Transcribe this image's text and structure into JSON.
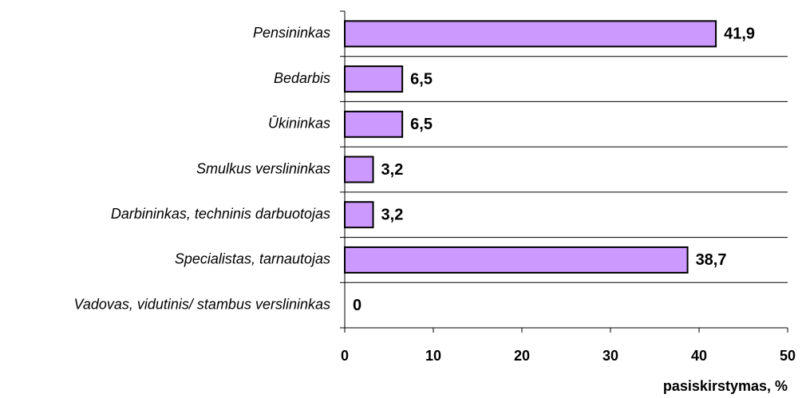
{
  "chart_data": {
    "type": "bar",
    "orientation": "horizontal",
    "categories": [
      "Pensininkas",
      "Bedarbis",
      "Ūkininkas",
      "Smulkus verslininkas",
      "Darbininkas, techninis darbuotojas",
      "Specialistas, tarnautojas",
      "Vadovas, vidutinis/ stambus verslininkas"
    ],
    "values": [
      41.9,
      6.5,
      6.5,
      3.2,
      3.2,
      38.7,
      0
    ],
    "value_labels": [
      "41,9",
      "6,5",
      "6,5",
      "3,2",
      "3,2",
      "38,7",
      "0"
    ],
    "color": "#cc99ff",
    "xlabel": "pasiskirstymas, %",
    "xlim": [
      0,
      50
    ],
    "xticks": [
      0,
      10,
      20,
      30,
      40,
      50
    ],
    "grid": true
  }
}
